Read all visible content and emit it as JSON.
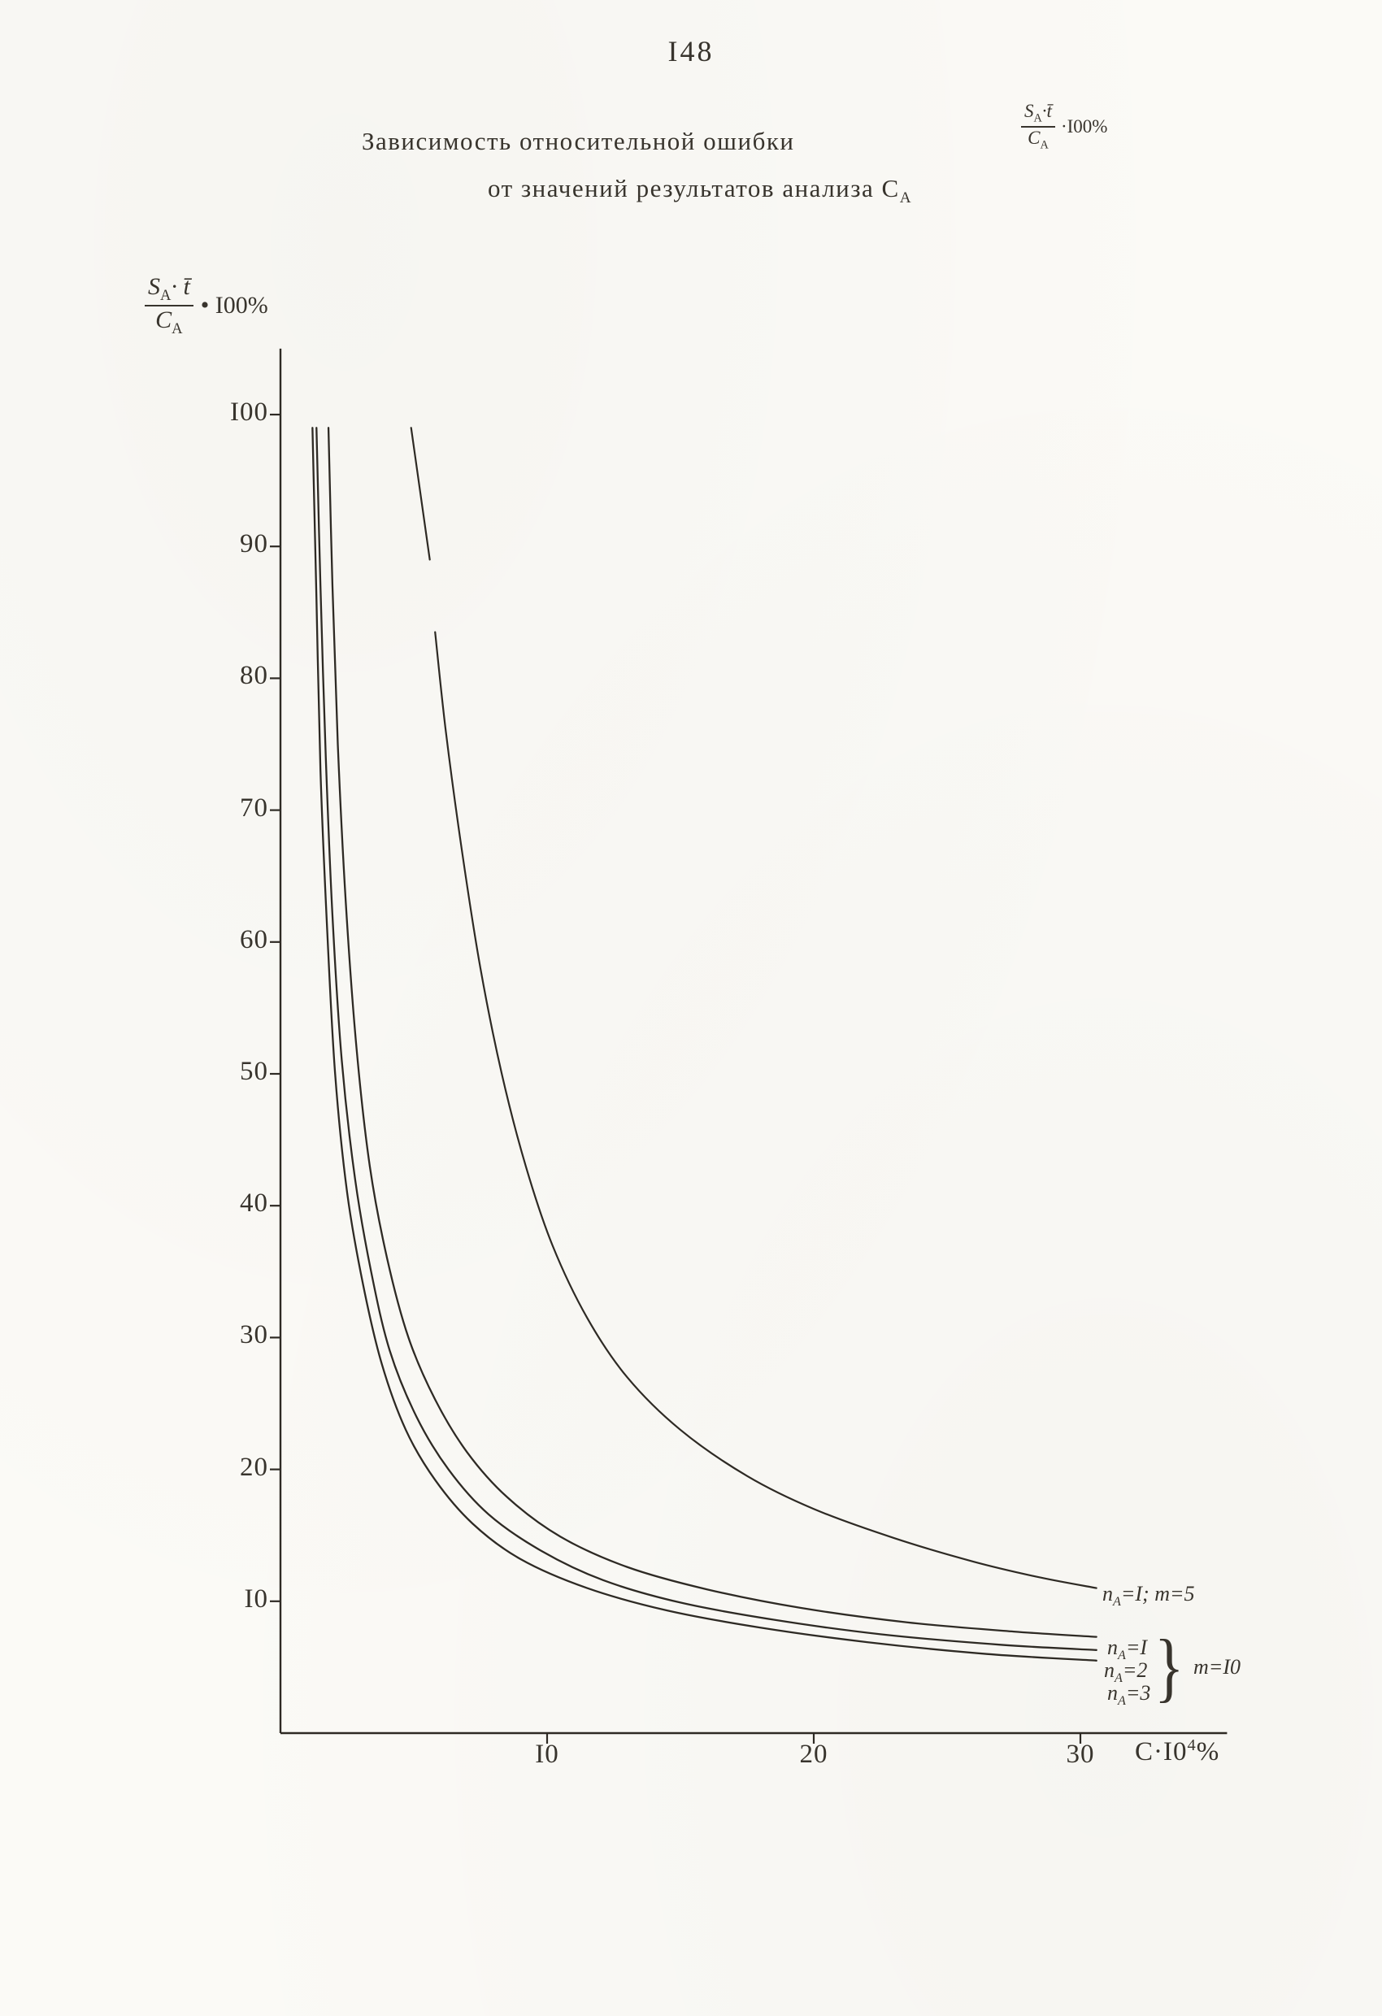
{
  "page": {
    "number": "I48"
  },
  "title": {
    "line1": "Зависимость относительной ошибки",
    "line2_prefix": "от значений результатов анализа С",
    "line2_sub": "А",
    "formula": {
      "num_base": "S",
      "num_sub": "A",
      "num_rest": "·t̄",
      "den_base": "C",
      "den_sub": "A",
      "suffix": "·I00%"
    }
  },
  "y_axis_label": {
    "num_base": "S",
    "num_sub": "A",
    "num_rest": "· t̄",
    "den_base": "C",
    "den_sub": "A",
    "suffix": "• I00%"
  },
  "x_axis_title": {
    "base": "C·I0",
    "sup": "4",
    "suffix": "%"
  },
  "legend": {
    "entry_m5": {
      "base": "n",
      "sub": "A",
      "rest": "=I; m=5"
    },
    "entries_m10": [
      {
        "base": "n",
        "sub": "A",
        "rest": "=I"
      },
      {
        "base": "n",
        "sub": "A",
        "rest": "=2"
      },
      {
        "base": "n",
        "sub": "A",
        "rest": "=3"
      }
    ],
    "brace": "}",
    "group_label": "m=I0"
  },
  "chart_data": {
    "type": "line",
    "title": "Зависимость относительной ошибки (S_A·t/C_A)·100% от значений результатов анализа C_A",
    "xlabel": "C·10^4 %",
    "ylabel": "(S_A·t/C_A)·100 %",
    "xlim": [
      0,
      35.5
    ],
    "ylim": [
      0,
      105
    ],
    "grid": false,
    "legend_position": "right-bottom",
    "x_ticks": [
      10,
      20,
      30
    ],
    "x_tick_labels": [
      "I0",
      "20",
      "30"
    ],
    "y_ticks": [
      10,
      20,
      30,
      40,
      50,
      60,
      70,
      80,
      90,
      100
    ],
    "y_tick_labels": [
      "I0",
      "20",
      "30",
      "40",
      "50",
      "60",
      "70",
      "80",
      "90",
      "I00"
    ],
    "series": [
      {
        "name": "n_A=1; m=5",
        "width": 2.2,
        "segments": [
          {
            "dashed": false,
            "points": [
              [
                4.9,
                99
              ],
              [
                5.6,
                89
              ]
            ]
          },
          {
            "dashed": false,
            "points": [
              [
                5.8,
                83.5
              ],
              [
                6.2,
                76
              ],
              [
                6.8,
                67
              ],
              [
                7.5,
                58
              ],
              [
                8.3,
                50
              ],
              [
                9.2,
                43
              ],
              [
                10.2,
                37
              ],
              [
                11.5,
                31.5
              ],
              [
                13,
                27
              ],
              [
                15,
                23
              ],
              [
                17.5,
                19.5
              ],
              [
                20,
                17
              ],
              [
                23,
                14.8
              ],
              [
                26,
                13
              ],
              [
                28.5,
                11.8
              ],
              [
                30.6,
                11
              ]
            ]
          }
        ]
      },
      {
        "name": "n_A=1; m=10",
        "width": 2.3,
        "segments": [
          {
            "dashed": false,
            "points": [
              [
                1.8,
                99
              ],
              [
                1.95,
                87
              ],
              [
                2.15,
                75
              ],
              [
                2.45,
                63
              ],
              [
                2.85,
                52
              ],
              [
                3.35,
                43
              ],
              [
                4.0,
                36
              ],
              [
                4.8,
                30
              ],
              [
                5.8,
                25.3
              ],
              [
                7.0,
                21.3
              ],
              [
                8.5,
                17.9
              ],
              [
                10.5,
                14.9
              ],
              [
                13,
                12.6
              ],
              [
                16,
                10.9
              ],
              [
                19.5,
                9.5
              ],
              [
                23.5,
                8.4
              ],
              [
                27.5,
                7.7
              ],
              [
                30.6,
                7.3
              ]
            ]
          }
        ]
      },
      {
        "name": "n_A=2; m=10",
        "width": 2.3,
        "segments": [
          {
            "dashed": false,
            "points": [
              [
                1.35,
                99
              ],
              [
                1.5,
                87
              ],
              [
                1.7,
                74
              ],
              [
                1.95,
                62
              ],
              [
                2.3,
                51
              ],
              [
                2.8,
                42
              ],
              [
                3.4,
                35
              ],
              [
                4.1,
                29
              ],
              [
                5.1,
                24
              ],
              [
                6.3,
                20
              ],
              [
                7.8,
                16.6
              ],
              [
                9.8,
                13.8
              ],
              [
                12.1,
                11.6
              ],
              [
                15,
                9.9
              ],
              [
                18.5,
                8.6
              ],
              [
                22.5,
                7.5
              ],
              [
                27,
                6.7
              ],
              [
                30.6,
                6.3
              ]
            ]
          }
        ]
      },
      {
        "name": "n_A=3; m=10",
        "width": 2.3,
        "segments": [
          {
            "dashed": false,
            "points": [
              [
                1.2,
                99
              ],
              [
                1.35,
                86
              ],
              [
                1.5,
                73
              ],
              [
                1.75,
                61
              ],
              [
                2.05,
                50
              ],
              [
                2.5,
                41
              ],
              [
                3.1,
                34
              ],
              [
                3.8,
                28
              ],
              [
                4.7,
                23
              ],
              [
                5.8,
                19.2
              ],
              [
                7.2,
                15.9
              ],
              [
                9.0,
                13.2
              ],
              [
                11.5,
                11.0
              ],
              [
                14.5,
                9.3
              ],
              [
                18,
                8.0
              ],
              [
                22,
                6.9
              ],
              [
                26.5,
                6.0
              ],
              [
                30.6,
                5.5
              ]
            ]
          }
        ]
      }
    ]
  }
}
